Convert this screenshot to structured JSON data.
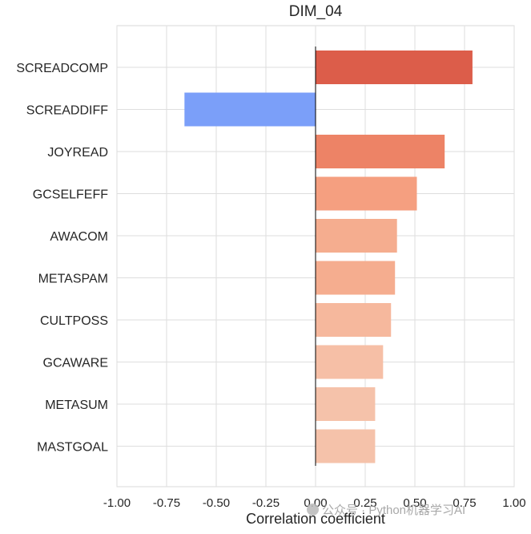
{
  "chart_data": {
    "type": "bar",
    "orientation": "horizontal",
    "title": "DIM_04",
    "xlabel": "Correlation coefficient",
    "ylabel": "",
    "xlim": [
      -1.0,
      1.0
    ],
    "xticks": [
      "-1.00",
      "-0.75",
      "-0.50",
      "-0.25",
      "0.00",
      "0.25",
      "0.50",
      "0.75",
      "1.00"
    ],
    "xtick_values": [
      -1.0,
      -0.75,
      -0.5,
      -0.25,
      0.0,
      0.25,
      0.5,
      0.75,
      1.0
    ],
    "grid": true,
    "categories": [
      "SCREADCOMP",
      "SCREADDIFF",
      "JOYREAD",
      "GCSELFEFF",
      "AWACOM",
      "METASPAM",
      "CULTPOSS",
      "GCAWARE",
      "METASUM",
      "MASTGOAL"
    ],
    "values": [
      0.79,
      -0.66,
      0.65,
      0.51,
      0.41,
      0.4,
      0.38,
      0.34,
      0.3,
      0.3
    ],
    "colors": [
      "#dc5d4a",
      "#7b9ff9",
      "#ed8366",
      "#f59f80",
      "#f5ad8f",
      "#f5ad8f",
      "#f6b89d",
      "#f6bfa6",
      "#f5c2aa",
      "#f5c2aa"
    ]
  },
  "watermark": "公众号 · Python机器学习AI"
}
